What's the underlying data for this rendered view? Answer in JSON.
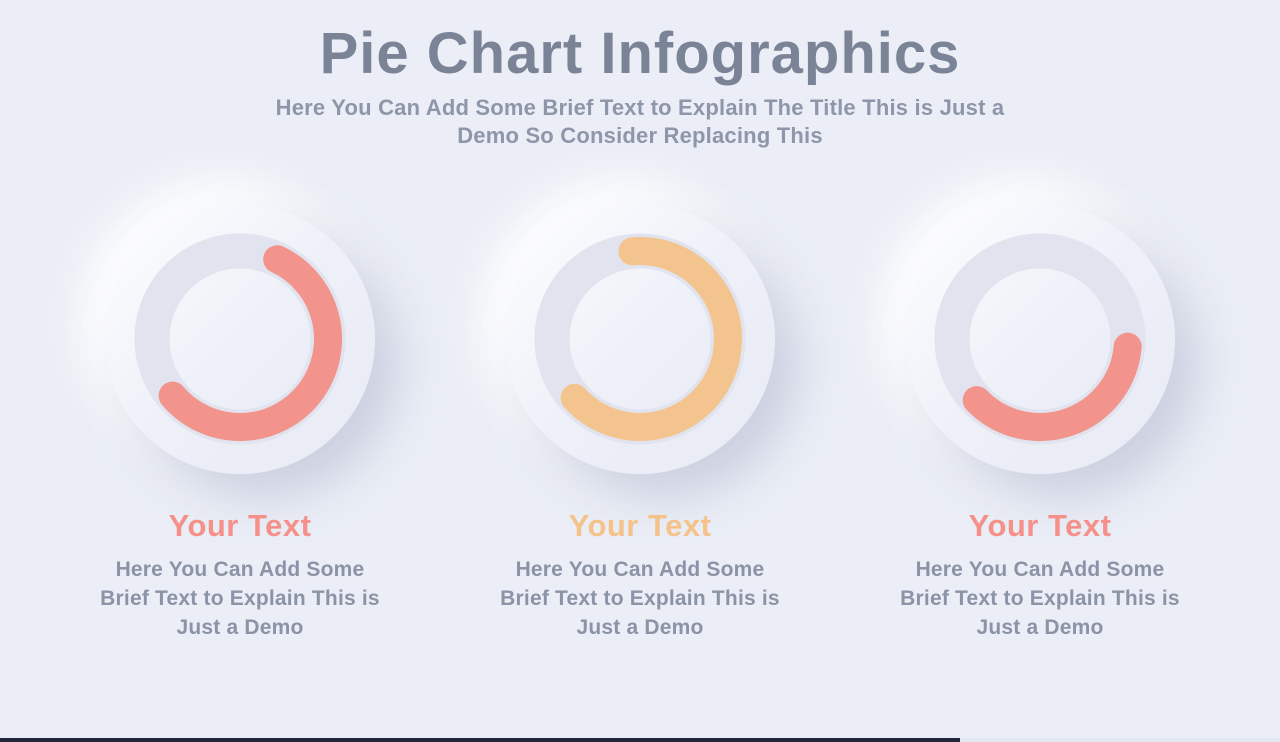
{
  "page": {
    "background_color": "#ebeef6",
    "bottom_progress_bar": {
      "fill_color": "#23263a",
      "track_color": "#e4e7f0",
      "fraction_filled": 0.75
    }
  },
  "header": {
    "title": "Pie Chart Infographics",
    "title_color": "#7b8497",
    "subtitle_lines": [
      "Here You Can Add Some Brief Text to Explain The Title This is Just a",
      "Demo So Consider Replacing This"
    ],
    "subtitle_color": "#8e96a9"
  },
  "chart_data": [
    {
      "type": "donut",
      "title": "Your Text",
      "title_color": "#f5918a",
      "value_percent": 57,
      "arc_start_angle_deg": 25,
      "arc_end_angle_deg": 230,
      "arc_color": "#f2938c",
      "track_color": "#e1e3ef",
      "description_lines": [
        "Here You Can Add Some",
        "Brief Text to Explain This is",
        "Just a Demo"
      ],
      "description_color": "#8b93a6"
    },
    {
      "type": "donut",
      "title": "Your Text",
      "title_color": "#f5c289",
      "value_percent": 65,
      "arc_start_angle_deg": -5,
      "arc_end_angle_deg": 228,
      "arc_color": "#f3c48d",
      "track_color": "#e1e3ef",
      "description_lines": [
        "Here You Can Add Some",
        "Brief Text to Explain This is",
        "Just a Demo"
      ],
      "description_color": "#8b93a6"
    },
    {
      "type": "donut",
      "title": "Your Text",
      "title_color": "#f5918a",
      "value_percent": 36,
      "arc_start_angle_deg": 95,
      "arc_end_angle_deg": 226,
      "arc_color": "#f2938c",
      "track_color": "#e1e3ef",
      "description_lines": [
        "Here You Can Add Some",
        "Brief Text to Explain This is",
        "Just a Demo"
      ],
      "description_color": "#8b93a6"
    }
  ]
}
